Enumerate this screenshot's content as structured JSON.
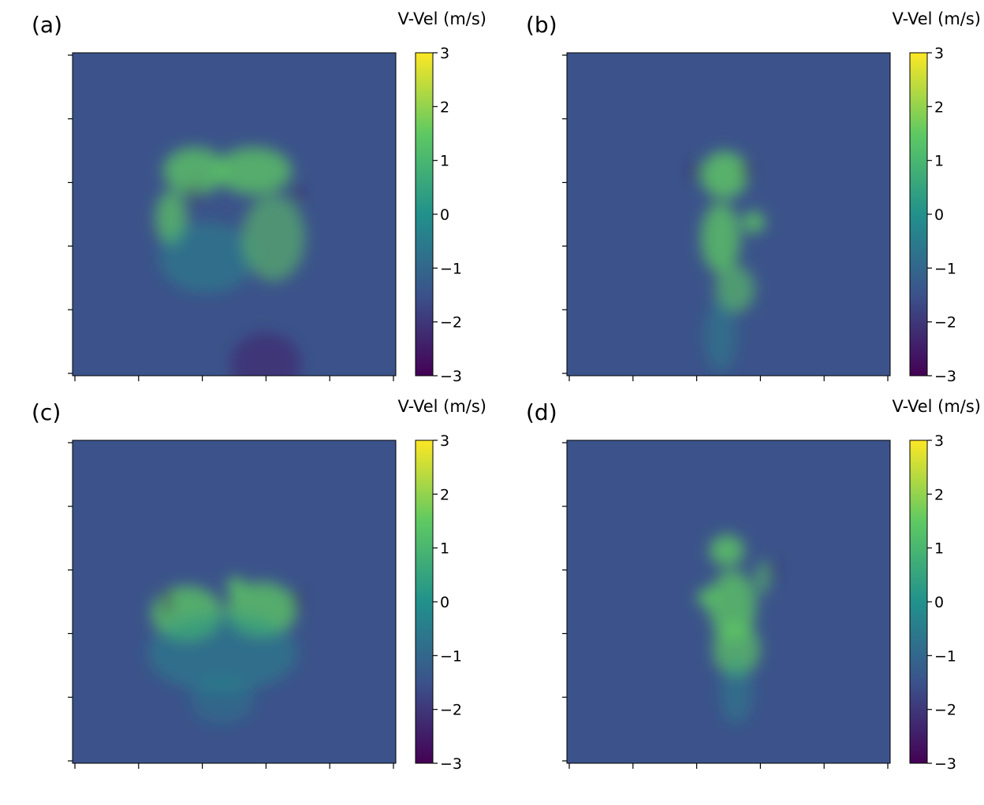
{
  "colormap": [
    "#440154",
    "#3b528b",
    "#21918c",
    "#5ec962",
    "#fde725"
  ],
  "background_color": "#3b538a",
  "chart_data": [
    {
      "type": "heatmap",
      "label": "(a)",
      "colorbar_label": "V-Vel (m/s)",
      "colorbar_range": [
        -3,
        3
      ],
      "colorbar_ticks": [
        "3",
        "2",
        "1",
        "0",
        "−1",
        "−2",
        "−3"
      ],
      "background_value": -1.7,
      "x_tick_count": 6,
      "y_tick_count": 6,
      "tick_labels_visible": false
    },
    {
      "type": "heatmap",
      "label": "(b)",
      "colorbar_label": "V-Vel (m/s)",
      "colorbar_range": [
        -3,
        3
      ],
      "colorbar_ticks": [
        "3",
        "2",
        "1",
        "0",
        "−1",
        "−2",
        "−3"
      ],
      "background_value": -1.7,
      "x_tick_count": 6,
      "y_tick_count": 6,
      "tick_labels_visible": false
    },
    {
      "type": "heatmap",
      "label": "(c)",
      "colorbar_label": "V-Vel (m/s)",
      "colorbar_range": [
        -3,
        3
      ],
      "colorbar_ticks": [
        "3",
        "2",
        "1",
        "0",
        "−1",
        "−2",
        "−3"
      ],
      "background_value": -1.7,
      "x_tick_count": 6,
      "y_tick_count": 6,
      "tick_labels_visible": false
    },
    {
      "type": "heatmap",
      "label": "(d)",
      "colorbar_label": "V-Vel (m/s)",
      "colorbar_range": [
        -3,
        3
      ],
      "colorbar_ticks": [
        "3",
        "2",
        "1",
        "0",
        "−1",
        "−2",
        "−3"
      ],
      "background_value": -1.7,
      "x_tick_count": 6,
      "y_tick_count": 6,
      "tick_labels_visible": false
    }
  ]
}
